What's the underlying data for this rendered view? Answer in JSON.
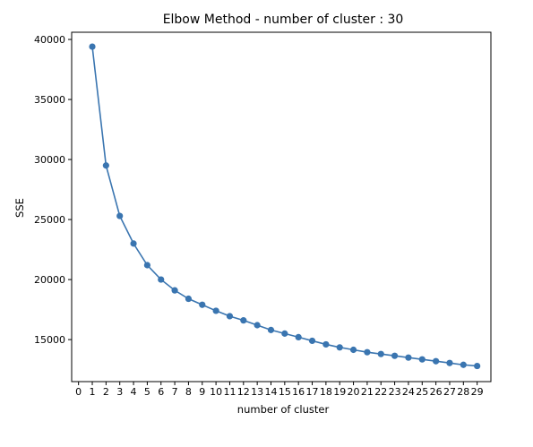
{
  "chart_data": {
    "type": "line",
    "title": "Elbow Method - number of cluster : 30",
    "xlabel": "number of cluster",
    "ylabel": "SSE",
    "xlim": [
      -0.5,
      30
    ],
    "ylim": [
      11500,
      40600
    ],
    "x_ticks": [
      0,
      1,
      2,
      3,
      4,
      5,
      6,
      7,
      8,
      9,
      10,
      11,
      12,
      13,
      14,
      15,
      16,
      17,
      18,
      19,
      20,
      21,
      22,
      23,
      24,
      25,
      26,
      27,
      28,
      29
    ],
    "y_ticks": [
      15000,
      20000,
      25000,
      30000,
      35000,
      40000
    ],
    "grid": false,
    "series": [
      {
        "color": "#3a75b0",
        "marker": "circle",
        "x": [
          1,
          2,
          3,
          4,
          5,
          6,
          7,
          8,
          9,
          10,
          11,
          12,
          13,
          14,
          15,
          16,
          17,
          18,
          19,
          20,
          21,
          22,
          23,
          24,
          25,
          26,
          27,
          28,
          29
        ],
        "values": [
          39400,
          29500,
          25300,
          23000,
          21200,
          20000,
          19100,
          18400,
          17900,
          17400,
          16950,
          16600,
          16200,
          15800,
          15500,
          15200,
          14900,
          14600,
          14350,
          14150,
          13950,
          13800,
          13650,
          13500,
          13350,
          13200,
          13050,
          12900,
          12800
        ]
      }
    ]
  }
}
